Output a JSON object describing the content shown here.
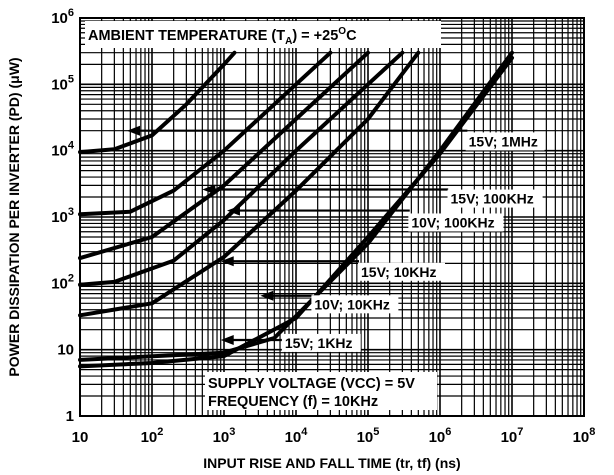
{
  "chart_data": {
    "type": "line",
    "xlabel": "INPUT RISE AND FALL TIME (tr, tf) (ns)",
    "ylabel": "POWER DISSIPATION PER INVERTER (PD) (μW)",
    "x_scale": "log",
    "y_scale": "log",
    "xlim": [
      10,
      100000000
    ],
    "ylim": [
      1,
      1000000
    ],
    "grid": true,
    "x_ticks": [
      {
        "base": "10",
        "exp": ""
      },
      {
        "base": "10",
        "exp": "2"
      },
      {
        "base": "10",
        "exp": "3"
      },
      {
        "base": "10",
        "exp": "4"
      },
      {
        "base": "10",
        "exp": "5"
      },
      {
        "base": "10",
        "exp": "6"
      },
      {
        "base": "10",
        "exp": "7"
      },
      {
        "base": "10",
        "exp": "8"
      }
    ],
    "y_ticks": [
      {
        "base": "1",
        "exp": ""
      },
      {
        "base": "10",
        "exp": ""
      },
      {
        "base": "10",
        "exp": "2"
      },
      {
        "base": "10",
        "exp": "3"
      },
      {
        "base": "10",
        "exp": "4"
      },
      {
        "base": "10",
        "exp": "5"
      },
      {
        "base": "10",
        "exp": "6"
      }
    ],
    "series": [
      {
        "name": "15V; 1MHz",
        "points": [
          [
            10,
            9500
          ],
          [
            30,
            10500
          ],
          [
            100,
            17000
          ],
          [
            300,
            50000
          ],
          [
            1000,
            200000
          ],
          [
            1400,
            300000
          ]
        ]
      },
      {
        "name": "15V; 100KHz",
        "points": [
          [
            10,
            1100
          ],
          [
            50,
            1200
          ],
          [
            200,
            2500
          ],
          [
            1000,
            10000
          ],
          [
            10000,
            100000
          ],
          [
            30000,
            300000
          ]
        ]
      },
      {
        "name": "10V; 100KHz",
        "points": [
          [
            10,
            240
          ],
          [
            100,
            500
          ],
          [
            1000,
            3000
          ],
          [
            10000,
            30000
          ],
          [
            100000,
            300000
          ]
        ]
      },
      {
        "name": "15V; 10KHz",
        "points": [
          [
            10,
            95
          ],
          [
            30,
            105
          ],
          [
            200,
            220
          ],
          [
            1000,
            900
          ],
          [
            10000,
            10000
          ],
          [
            100000,
            100000
          ],
          [
            300000,
            300000
          ]
        ]
      },
      {
        "name": "10V; 10KHz",
        "points": [
          [
            10,
            33
          ],
          [
            100,
            50
          ],
          [
            1000,
            250
          ],
          [
            10000,
            2500
          ],
          [
            100000,
            30000
          ],
          [
            500000,
            300000
          ]
        ]
      },
      {
        "name": "15V; 1KHz",
        "points": [
          [
            10,
            7
          ],
          [
            1000,
            9
          ],
          [
            5000,
            15
          ],
          [
            100000,
            400
          ],
          [
            1000000,
            10000
          ],
          [
            10000000,
            300000
          ]
        ]
      },
      {
        "name": "SUPPLY VOLTAGE (VCC) = 5V; FREQUENCY (f) = 10KHz",
        "points": [
          [
            10,
            5.6
          ],
          [
            100,
            6.3
          ],
          [
            1000,
            8
          ],
          [
            10000,
            30
          ],
          [
            100000,
            500
          ],
          [
            1000000,
            9000
          ],
          [
            10000000,
            250000
          ]
        ]
      }
    ],
    "annotations": {
      "ambient_prefix": "AMBIENT TEMPERATURE (T",
      "ambient_sub": "A",
      "ambient_mid": ") = +25",
      "ambient_sup": "O",
      "ambient_suffix": "C",
      "supply_line1": "SUPPLY VOLTAGE (VCC) = 5V",
      "supply_line2": "FREQUENCY (f) = 10KHz",
      "labels": [
        {
          "text": "15V; 1MHz",
          "x": 2500000,
          "y": 12000
        },
        {
          "text": "15V; 100KHz",
          "x": 1400000,
          "y": 1650
        },
        {
          "text": "10V; 100KHz",
          "x": 400000,
          "y": 720
        },
        {
          "text": "15V; 10KHz",
          "x": 80000,
          "y": 130
        },
        {
          "text": "10V; 10KHz",
          "x": 18000,
          "y": 42
        },
        {
          "text": "15V; 1KHz",
          "x": 7000,
          "y": 11
        }
      ],
      "arrows": [
        {
          "from": [
            2400000,
            20000
          ],
          "to": [
            45,
            20000
          ]
        },
        {
          "from": [
            1300000,
            2600
          ],
          "to": [
            500,
            2600
          ]
        },
        {
          "from": [
            380000,
            1250
          ],
          "to": [
            1100,
            1250
          ]
        },
        {
          "from": [
            75000,
            215
          ],
          "to": [
            900,
            215
          ]
        },
        {
          "from": [
            17000,
            65
          ],
          "to": [
            3200,
            65
          ]
        },
        {
          "from": [
            6500,
            14
          ],
          "to": [
            900,
            14
          ]
        }
      ]
    }
  }
}
